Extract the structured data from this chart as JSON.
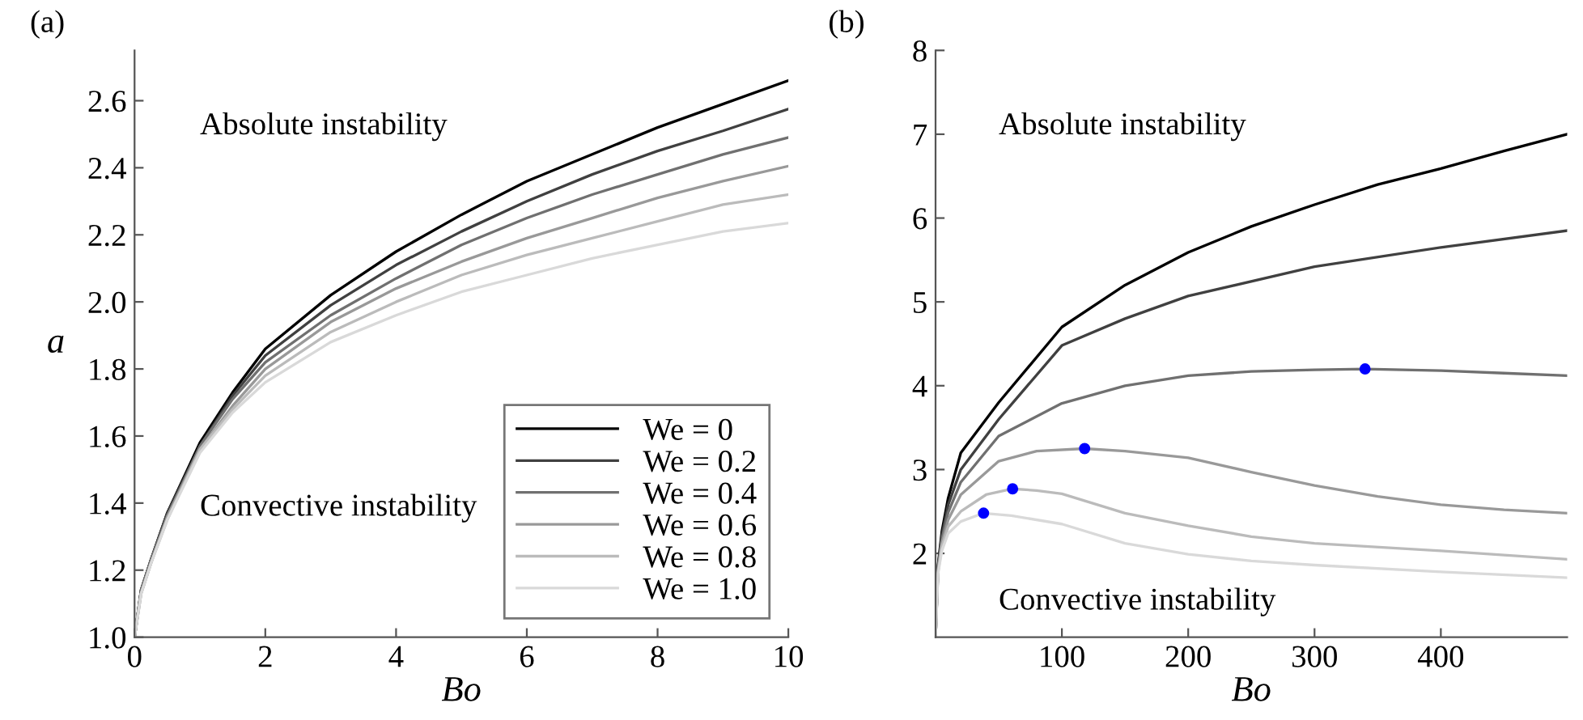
{
  "chart_data": [
    {
      "type": "line",
      "title": "(a)",
      "xlabel": "Bo",
      "ylabel": "a",
      "xlim": [
        0,
        10
      ],
      "ylim": [
        1.0,
        2.75
      ],
      "xticks": [
        0,
        2,
        4,
        6,
        8,
        10
      ],
      "yticks": [
        {
          "value": 1.0,
          "label": "1.0"
        },
        1.2,
        1.4,
        1.6,
        1.8,
        {
          "value": 2.0,
          "label": "2.0"
        },
        2.2,
        2.4,
        2.6
      ],
      "grid": false,
      "legend": "bottom right",
      "marker": "none",
      "line_style": "solid",
      "annotations": [
        "Absolute instability",
        "Convective instability"
      ],
      "x": [
        0,
        0.1,
        0.25,
        0.5,
        1,
        1.5,
        2,
        3,
        4,
        5,
        6,
        7,
        8,
        9,
        10
      ],
      "series": [
        {
          "name": "We = 0",
          "color": "#000000",
          "values": [
            1.0,
            1.14,
            1.23,
            1.37,
            1.58,
            1.73,
            1.86,
            2.02,
            2.15,
            2.26,
            2.36,
            2.44,
            2.52,
            2.59,
            2.66
          ]
        },
        {
          "name": "We = 0.2",
          "color": "#404040",
          "values": [
            1.0,
            1.14,
            1.23,
            1.37,
            1.57,
            1.72,
            1.84,
            1.99,
            2.11,
            2.21,
            2.3,
            2.38,
            2.45,
            2.51,
            2.575
          ]
        },
        {
          "name": "We = 0.4",
          "color": "#707070",
          "values": [
            1.0,
            1.14,
            1.23,
            1.36,
            1.57,
            1.71,
            1.82,
            1.96,
            2.07,
            2.17,
            2.25,
            2.32,
            2.38,
            2.44,
            2.49
          ]
        },
        {
          "name": "We = 0.6",
          "color": "#999999",
          "values": [
            1.0,
            1.13,
            1.22,
            1.36,
            1.56,
            1.69,
            1.8,
            1.94,
            2.04,
            2.12,
            2.19,
            2.25,
            2.31,
            2.36,
            2.405
          ]
        },
        {
          "name": "We = 0.8",
          "color": "#bbbbbb",
          "values": [
            1.0,
            1.13,
            1.22,
            1.35,
            1.56,
            1.68,
            1.78,
            1.91,
            2.0,
            2.08,
            2.14,
            2.19,
            2.24,
            2.29,
            2.32
          ]
        },
        {
          "name": "We = 1.0",
          "color": "#d9d9d9",
          "values": [
            1.0,
            1.13,
            1.22,
            1.35,
            1.55,
            1.67,
            1.76,
            1.88,
            1.96,
            2.03,
            2.08,
            2.13,
            2.17,
            2.21,
            2.235
          ]
        }
      ]
    },
    {
      "type": "line",
      "title": "(b)",
      "xlabel": "Bo",
      "xlim": [
        0,
        500
      ],
      "ylim": [
        1,
        8
      ],
      "xticks": [
        100,
        200,
        300,
        400
      ],
      "yticks": [
        2,
        3,
        4,
        5,
        6,
        7,
        8
      ],
      "grid": false,
      "marker": "none",
      "line_style": "solid",
      "annotations": [
        "Absolute instability",
        "Convective instability"
      ],
      "series": [
        {
          "color": "#000000",
          "x": [
            0,
            2,
            5,
            10,
            20,
            50,
            100,
            150,
            200,
            250,
            300,
            350,
            400,
            450,
            500
          ],
          "values": [
            1,
            1.86,
            2.26,
            2.66,
            3.2,
            3.8,
            4.7,
            5.2,
            5.59,
            5.9,
            6.16,
            6.4,
            6.59,
            6.8,
            7.0
          ]
        },
        {
          "color": "#404040",
          "x": [
            0,
            2,
            5,
            10,
            20,
            50,
            100,
            150,
            200,
            300,
            400,
            500
          ],
          "values": [
            1,
            1.84,
            2.21,
            2.58,
            3.0,
            3.6,
            4.48,
            4.8,
            5.07,
            5.42,
            5.65,
            5.85
          ]
        },
        {
          "color": "#707070",
          "x": [
            0,
            2,
            5,
            10,
            20,
            50,
            100,
            150,
            200,
            250,
            300,
            340,
            400,
            450,
            500
          ],
          "values": [
            1,
            1.82,
            2.17,
            2.49,
            2.85,
            3.4,
            3.79,
            4.0,
            4.12,
            4.17,
            4.19,
            4.2,
            4.18,
            4.15,
            4.12
          ]
        },
        {
          "color": "#999999",
          "x": [
            0,
            2,
            5,
            10,
            20,
            50,
            80,
            118,
            150,
            200,
            250,
            300,
            350,
            400,
            450,
            500
          ],
          "values": [
            1,
            1.8,
            2.12,
            2.4,
            2.7,
            3.1,
            3.22,
            3.25,
            3.22,
            3.14,
            2.97,
            2.81,
            2.68,
            2.58,
            2.52,
            2.48
          ]
        },
        {
          "color": "#bbbbbb",
          "x": [
            0,
            2,
            5,
            10,
            20,
            40,
            61,
            80,
            100,
            150,
            200,
            250,
            300,
            400,
            500
          ],
          "values": [
            1,
            1.78,
            2.08,
            2.32,
            2.5,
            2.7,
            2.77,
            2.75,
            2.71,
            2.48,
            2.33,
            2.2,
            2.12,
            2.03,
            1.93
          ]
        },
        {
          "color": "#d9d9d9",
          "x": [
            0,
            2,
            5,
            10,
            20,
            38,
            60,
            100,
            150,
            200,
            250,
            300,
            400,
            500
          ],
          "values": [
            1,
            1.76,
            2.03,
            2.24,
            2.38,
            2.48,
            2.45,
            2.35,
            2.12,
            1.99,
            1.91,
            1.86,
            1.78,
            1.71
          ]
        },
        {
          "type": "scatter",
          "marker": "circle",
          "color": "#0000ff",
          "x": [
            38,
            61,
            118,
            340
          ],
          "values": [
            2.48,
            2.77,
            3.25,
            4.2
          ]
        }
      ]
    }
  ]
}
